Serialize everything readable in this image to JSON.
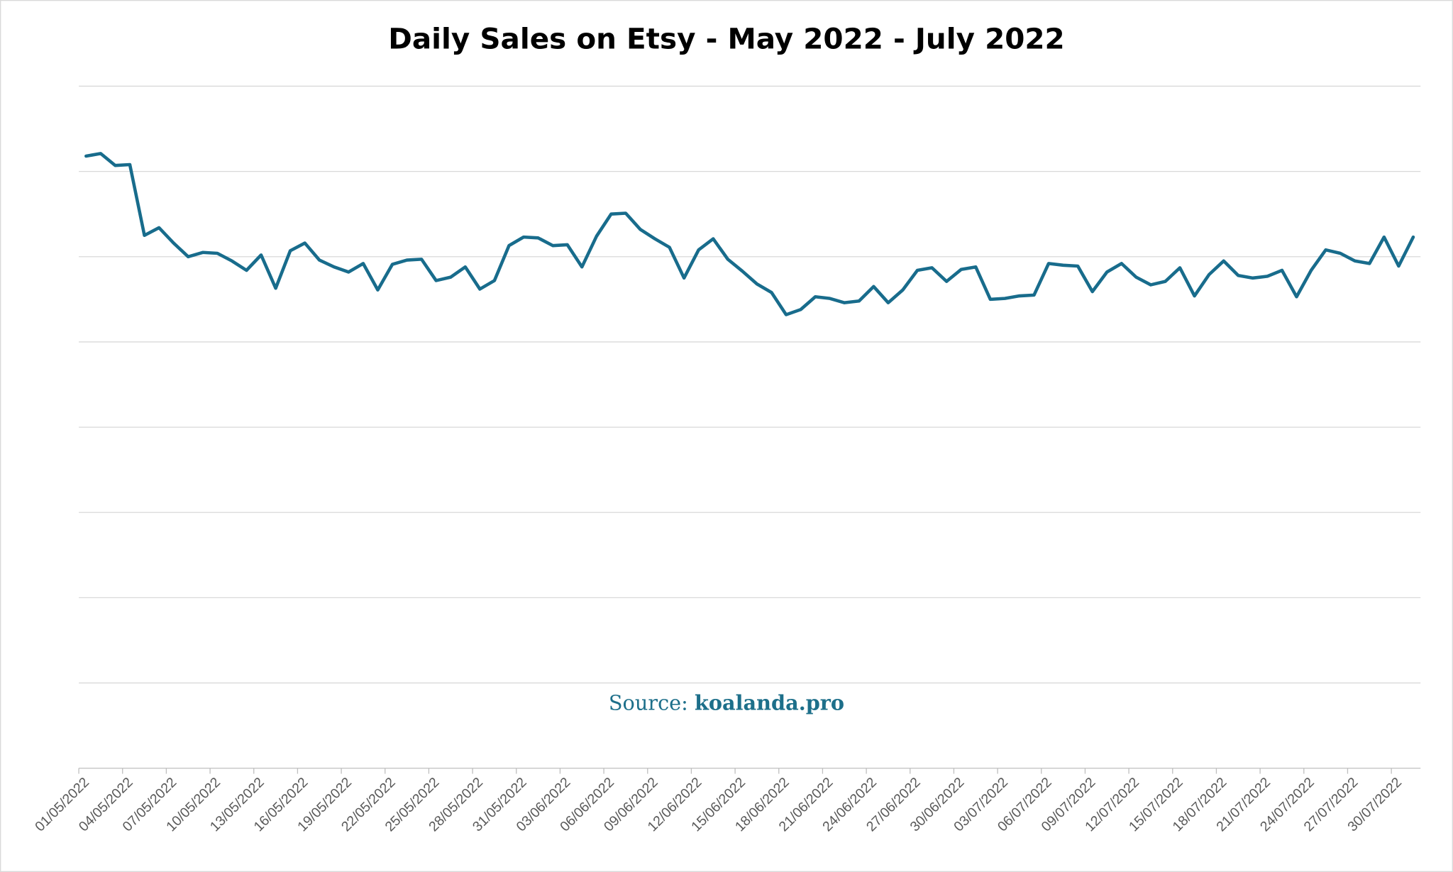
{
  "chart_data": {
    "type": "line",
    "title": "Daily Sales on Etsy - May 2022 - July 2022",
    "source_label": "Source:",
    "source": "koalanda.pro",
    "categories": [
      "01/05/2022",
      null,
      null,
      "04/05/2022",
      null,
      null,
      "07/05/2022",
      null,
      null,
      "10/05/2022",
      null,
      null,
      "13/05/2022",
      null,
      null,
      "16/05/2022",
      null,
      null,
      "19/05/2022",
      null,
      null,
      "22/05/2022",
      null,
      null,
      "25/05/2022",
      null,
      null,
      "28/05/2022",
      null,
      null,
      "31/05/2022",
      null,
      null,
      "03/06/2022",
      null,
      null,
      "06/06/2022",
      null,
      null,
      "09/06/2022",
      null,
      null,
      "12/06/2022",
      null,
      null,
      "15/06/2022",
      null,
      null,
      "18/06/2022",
      null,
      null,
      "21/06/2022",
      null,
      null,
      "24/06/2022",
      null,
      null,
      "27/06/2022",
      null,
      null,
      "30/06/2022",
      null,
      null,
      "03/07/2022",
      null,
      null,
      "06/07/2022",
      null,
      null,
      "09/07/2022",
      null,
      null,
      "12/07/2022",
      null,
      null,
      "15/07/2022",
      null,
      null,
      "18/07/2022",
      null,
      null,
      "21/07/2022",
      null,
      null,
      "24/07/2022",
      null,
      null,
      "27/07/2022",
      null,
      null,
      "30/07/2022",
      null
    ],
    "values": [
      7.18,
      7.21,
      7.07,
      7.08,
      6.25,
      6.34,
      6.16,
      6.0,
      6.05,
      6.04,
      5.95,
      5.84,
      6.02,
      5.63,
      6.07,
      6.16,
      5.96,
      5.88,
      5.82,
      5.92,
      5.61,
      5.91,
      5.96,
      5.97,
      5.72,
      5.76,
      5.88,
      5.62,
      5.72,
      6.13,
      6.23,
      6.22,
      6.13,
      6.14,
      5.88,
      6.24,
      6.5,
      6.51,
      6.32,
      6.21,
      6.11,
      5.75,
      6.08,
      6.21,
      5.97,
      5.83,
      5.68,
      5.58,
      5.32,
      5.38,
      5.53,
      5.51,
      5.46,
      5.48,
      5.65,
      5.46,
      5.61,
      5.84,
      5.87,
      5.71,
      5.85,
      5.88,
      5.5,
      5.51,
      5.54,
      5.55,
      5.92,
      5.9,
      5.89,
      5.59,
      5.82,
      5.92,
      5.76,
      5.67,
      5.71,
      5.87,
      5.54,
      5.79,
      5.95,
      5.78,
      5.75,
      5.77,
      5.84,
      5.53,
      5.84,
      6.08,
      6.04,
      5.95,
      5.92,
      6.23,
      5.89,
      6.23
    ],
    "color": "#186c8c",
    "ylim": [
      0,
      8
    ],
    "yticks": [
      0,
      1,
      2,
      3,
      4,
      5,
      6,
      7,
      8
    ],
    "ytick_labels": false,
    "grid": true
  }
}
